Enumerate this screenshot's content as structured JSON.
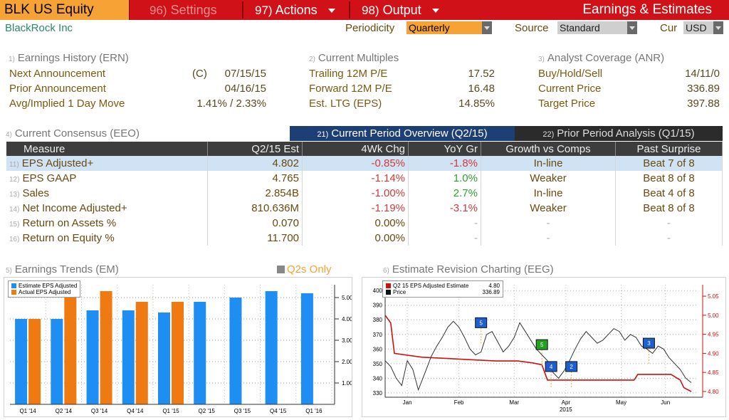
{
  "app": {
    "ticker": "BLK US Equity",
    "title": "Earnings & Estimates",
    "menus": [
      {
        "num": "96)",
        "label": "Settings"
      },
      {
        "num": "97)",
        "label": "Actions"
      },
      {
        "num": "98)",
        "label": "Output"
      }
    ]
  },
  "header": {
    "company": "BlackRock Inc",
    "periodicity_label": "Periodicity",
    "periodicity_value": "Quarterly",
    "source_label": "Source",
    "source_value": "Standard",
    "cur_label": "Cur",
    "cur_value": "USD"
  },
  "sections": {
    "earnings_history": {
      "num": "1)",
      "title": "Earnings History (ERN)",
      "rows": [
        {
          "label": "Next Announcement",
          "prefix": "(C)",
          "value": "07/15/15"
        },
        {
          "label": "Prior Announcement",
          "prefix": "",
          "value": "04/16/15"
        },
        {
          "label": "Avg/Implied 1 Day Move",
          "prefix": "",
          "value": "1.41% / 2.33%"
        }
      ]
    },
    "current_multiples": {
      "num": "2)",
      "title": "Current Multiples",
      "rows": [
        {
          "label": "Trailing 12M P/E",
          "value": "17.52"
        },
        {
          "label": "Forward 12M P/E",
          "value": "16.48"
        },
        {
          "label": "Est. LTG (EPS)",
          "value": "14.85%"
        }
      ]
    },
    "analyst_coverage": {
      "num": "3)",
      "title": "Analyst Coverage (ANR)",
      "rows": [
        {
          "label": "Buy/Hold/Sell",
          "value": "14/11/0"
        },
        {
          "label": "Current Price",
          "value": "336.89"
        },
        {
          "label": "Target Price",
          "value": "397.88"
        }
      ]
    },
    "consensus": {
      "num": "4)",
      "title": "Current Consensus (EEO)"
    },
    "trends": {
      "num": "5)",
      "title": "Earnings Trends (EM)"
    },
    "revision": {
      "num": "6)",
      "title": "Estimate Revision Charting (EEG)"
    }
  },
  "tabs": [
    {
      "num": "21)",
      "label": "Current Period Overview (Q2/15)",
      "active": true
    },
    {
      "num": "22)",
      "label": "Prior Period Analysis (Q1/15)",
      "active": false
    }
  ],
  "table": {
    "headers": [
      "Measure",
      "Q2/15 Est",
      "4Wk Chg",
      "YoY Gr",
      "Growth vs Comps",
      "Past Surprise"
    ],
    "rows": [
      {
        "num": "11)",
        "measure": "EPS Adjusted+",
        "est": "4.802",
        "chg": "-0.85%",
        "chg_tone": "neg",
        "yoy": "-1.8%",
        "yoy_tone": "neg",
        "growth": "In-line",
        "surprise": "Beat 7 of 8"
      },
      {
        "num": "12)",
        "measure": "EPS GAAP",
        "est": "4.765",
        "chg": "-1.14%",
        "chg_tone": "neg",
        "yoy": "1.0%",
        "yoy_tone": "pos",
        "growth": "Weaker",
        "surprise": "Beat 8 of 8"
      },
      {
        "num": "13)",
        "measure": "Sales",
        "est": "2.854B",
        "chg": "-1.00%",
        "chg_tone": "neg",
        "yoy": "2.7%",
        "yoy_tone": "pos",
        "growth": "In-line",
        "surprise": "Beat 4 of 8"
      },
      {
        "num": "14)",
        "measure": "Net Income Adjusted+",
        "est": "810.636M",
        "chg": "-1.19%",
        "chg_tone": "neg",
        "yoy": "-3.1%",
        "yoy_tone": "neg",
        "growth": "Weaker",
        "surprise": "Beat 8 of 8"
      },
      {
        "num": "15)",
        "measure": "Return on Assets %",
        "est": "0.070",
        "chg": "0.00%",
        "chg_tone": "",
        "yoy": "-",
        "yoy_tone": "dash",
        "growth": "-",
        "surprise": "-"
      },
      {
        "num": "16)",
        "measure": "Return on Equity %",
        "est": "11.700",
        "chg": "0.00%",
        "chg_tone": "",
        "yoy": "-",
        "yoy_tone": "dash",
        "growth": "-",
        "surprise": "-"
      }
    ]
  },
  "q2_only": "Q2s Only",
  "colors": {
    "accent": "#f7a234",
    "brand_red": "#d01218",
    "estimate_blue": "#1e8ef2",
    "actual_orange": "#f07a12",
    "price_line": "#333333",
    "estimate_line": "#cc1111"
  },
  "chart_data": [
    {
      "type": "bar",
      "categories": [
        "Q1 '14",
        "Q2 '14",
        "Q3 '14",
        "Q4 '14",
        "Q1 '15",
        "Q2 '15",
        "Q3 '15",
        "Q4 '15",
        "Q1 '16"
      ],
      "series": [
        {
          "name": "Estimate EPS Adjusted",
          "values": [
            4.0,
            4.0,
            4.4,
            4.4,
            4.3,
            4.8,
            5.0,
            5.3,
            5.2
          ]
        },
        {
          "name": "Actual EPS Adjusted",
          "values": [
            4.0,
            5.0,
            5.3,
            4.8,
            4.8,
            null,
            null,
            null,
            null
          ]
        }
      ],
      "y_ticks": [
        "1.00",
        "2.00",
        "3.00",
        "4.00",
        "5.00"
      ],
      "ylim": [
        0,
        5.6
      ],
      "grid": true,
      "legend": "top-left"
    },
    {
      "type": "line",
      "x_ticks": [
        "Jan",
        "Feb",
        "Mar",
        "Apr",
        "May",
        "Jun"
      ],
      "x_year": "2015",
      "left_ticks": [
        330,
        340,
        350,
        360,
        370,
        380,
        390,
        400
      ],
      "right_ticks": [
        "4.80",
        "4.85",
        "4.90",
        "4.95",
        "5.00",
        "5.05"
      ],
      "legend_entries": [
        {
          "name": "Q2 15 EPS Adjusted Estimate",
          "value": "4.80"
        },
        {
          "name": "Price",
          "value": "336.89"
        }
      ],
      "price": [
        [
          0,
          352
        ],
        [
          3,
          348
        ],
        [
          6,
          340
        ],
        [
          9,
          335
        ],
        [
          12,
          352
        ],
        [
          15,
          346
        ],
        [
          18,
          332
        ],
        [
          22,
          345
        ],
        [
          25,
          355
        ],
        [
          28,
          362
        ],
        [
          31,
          368
        ],
        [
          34,
          375
        ],
        [
          37,
          379
        ],
        [
          40,
          375
        ],
        [
          43,
          368
        ],
        [
          46,
          360
        ],
        [
          49,
          356
        ],
        [
          52,
          358
        ],
        [
          55,
          370
        ],
        [
          58,
          372
        ],
        [
          61,
          365
        ],
        [
          64,
          358
        ],
        [
          67,
          362
        ],
        [
          70,
          368
        ],
        [
          73,
          378
        ],
        [
          76,
          372
        ],
        [
          79,
          366
        ],
        [
          82,
          360
        ],
        [
          85,
          356
        ],
        [
          88,
          352
        ],
        [
          91,
          344
        ],
        [
          94,
          340
        ],
        [
          97,
          345
        ],
        [
          100,
          352
        ],
        [
          103,
          360
        ],
        [
          106,
          367
        ],
        [
          109,
          372
        ],
        [
          112,
          368
        ],
        [
          115,
          364
        ],
        [
          118,
          366
        ],
        [
          121,
          370
        ],
        [
          124,
          374
        ],
        [
          127,
          372
        ],
        [
          130,
          366
        ],
        [
          133,
          370
        ],
        [
          136,
          368
        ],
        [
          139,
          362
        ],
        [
          142,
          360
        ],
        [
          145,
          357
        ],
        [
          148,
          362
        ],
        [
          151,
          360
        ],
        [
          154,
          354
        ],
        [
          157,
          350
        ],
        [
          160,
          346
        ],
        [
          163,
          340
        ],
        [
          166,
          337
        ]
      ],
      "estimate": [
        [
          0,
          5.0
        ],
        [
          3,
          4.98
        ],
        [
          5,
          4.9
        ],
        [
          20,
          4.89
        ],
        [
          40,
          4.885
        ],
        [
          60,
          4.88
        ],
        [
          72,
          4.88
        ],
        [
          80,
          4.875
        ],
        [
          85,
          4.87
        ],
        [
          88,
          4.83
        ],
        [
          100,
          4.83
        ],
        [
          120,
          4.83
        ],
        [
          135,
          4.83
        ],
        [
          137,
          4.845
        ],
        [
          155,
          4.845
        ],
        [
          160,
          4.83
        ],
        [
          162,
          4.81
        ],
        [
          166,
          4.8
        ]
      ],
      "markers": [
        {
          "label": "5",
          "x": 52,
          "y": 378,
          "color": "#1e5fd0"
        },
        {
          "label": "5",
          "x": 85,
          "y": 363,
          "color": "#21a021"
        },
        {
          "label": "4",
          "x": 90,
          "y": 348,
          "color": "#1e5fd0"
        },
        {
          "label": "2",
          "x": 101,
          "y": 348,
          "color": "#1e5fd0"
        },
        {
          "label": "3",
          "x": 143,
          "y": 364,
          "color": "#1e5fd0"
        }
      ]
    }
  ]
}
